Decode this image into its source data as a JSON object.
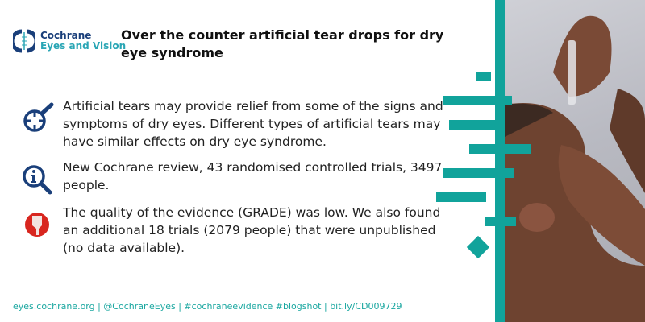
{
  "logo": {
    "line1": "Cochrane",
    "line2": "Eyes and Vision"
  },
  "title": "Over the counter artificial tear drops for dry eye syndrome",
  "points": [
    {
      "icon": "target-magnifier-icon",
      "text": "Artificial tears may provide relief from some of the signs and symptoms of dry eyes. Different types of artificial tears may have similar effects on dry eye syndrome."
    },
    {
      "icon": "info-magnifier-icon",
      "text": "New Cochrane review, 43 randomised controlled trials, 3497 people."
    },
    {
      "icon": "thumbs-down-icon",
      "text": "The quality of the evidence (GRADE) was low. We also found an additional 18 trials (2079 people) that were unpublished (no data available)."
    }
  ],
  "footer": "eyes.cochrane.org | @CochraneEyes | #cochraneevidence #blogshot | bit.ly/CD009729",
  "colors": {
    "navy": "#1a3f7a",
    "teal": "#11a39b",
    "red": "#d8261f"
  }
}
